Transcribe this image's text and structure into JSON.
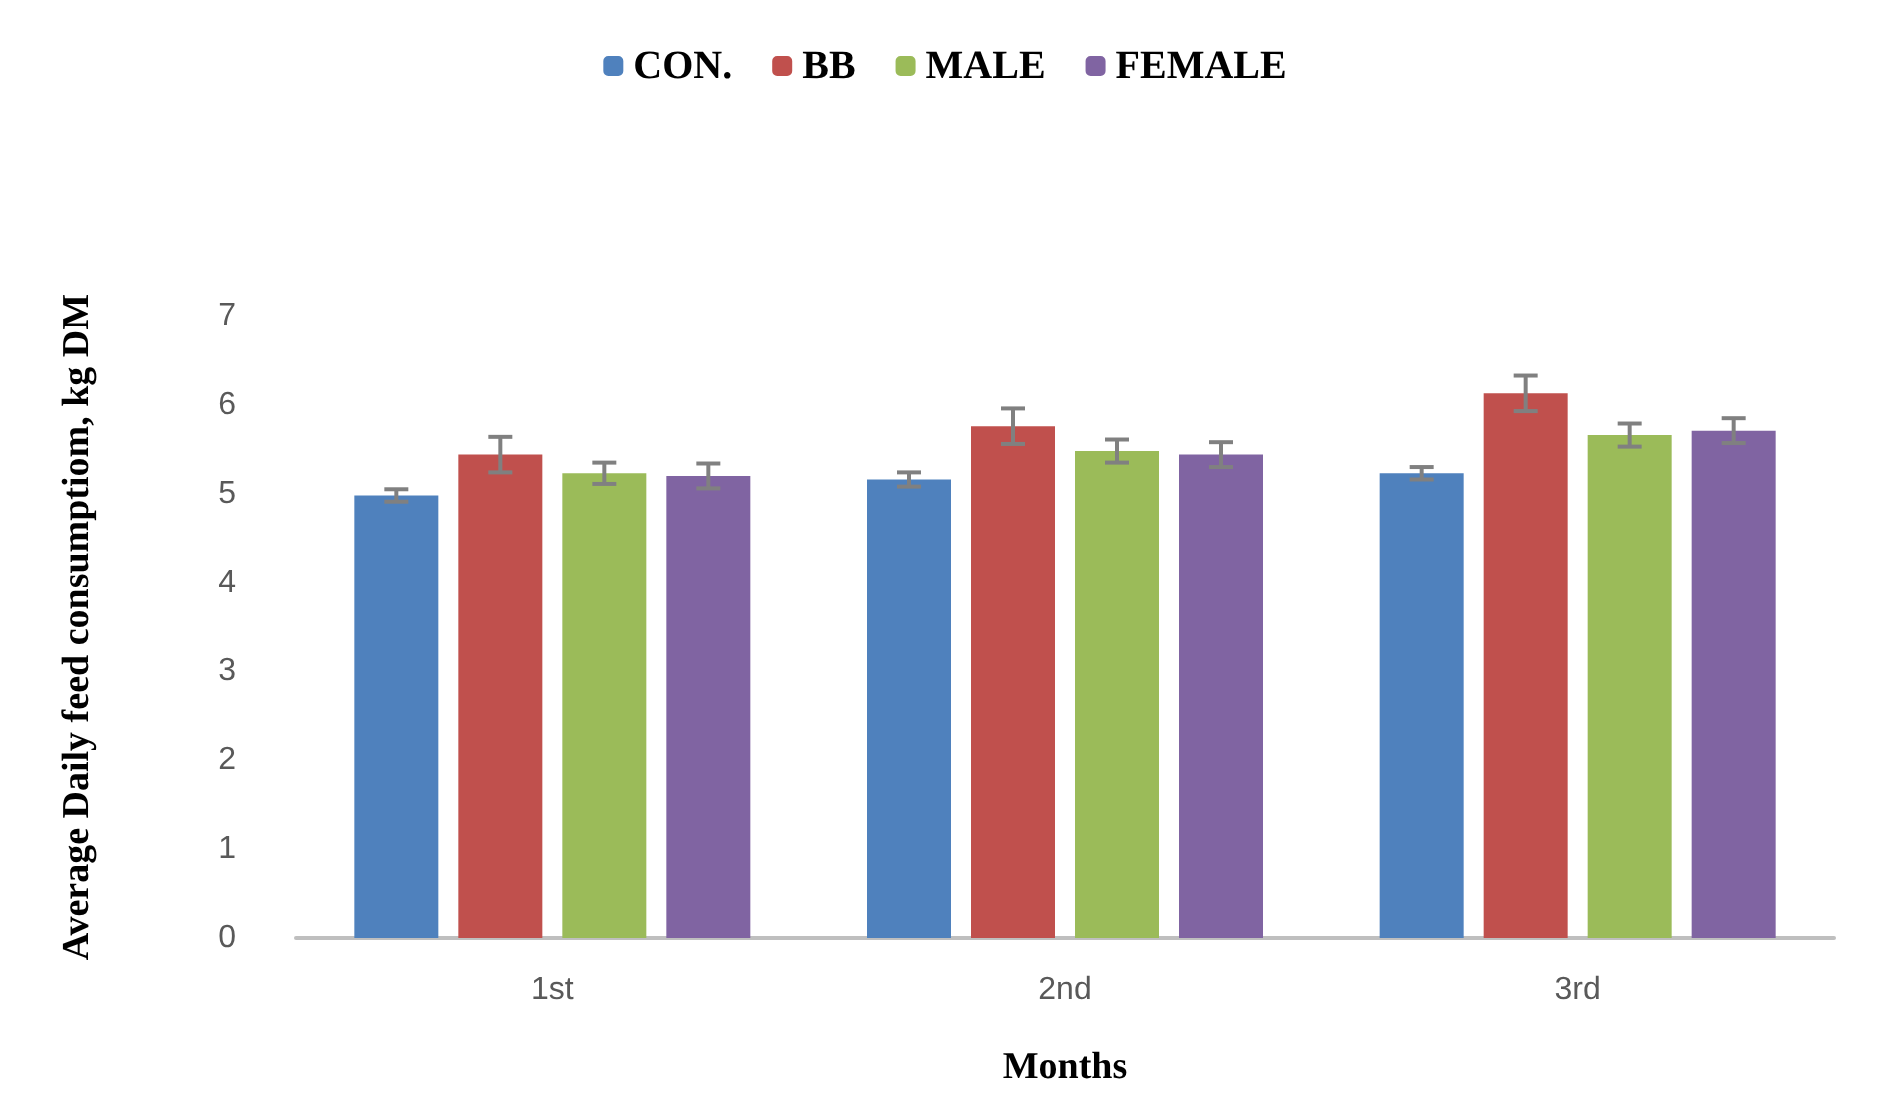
{
  "chart_data": {
    "type": "bar",
    "xlabel": "Months",
    "ylabel": "Average Daily feed consumptiom, kg DM",
    "categories": [
      "1st",
      "2nd",
      "3rd"
    ],
    "series": [
      {
        "name": "CON.",
        "color": "#4f81bd",
        "values": [
          4.98,
          5.16,
          5.23
        ],
        "errors": [
          0.07,
          0.08,
          0.07
        ]
      },
      {
        "name": "BB",
        "color": "#c0504d",
        "values": [
          5.44,
          5.76,
          6.13
        ],
        "errors": [
          0.2,
          0.2,
          0.2
        ]
      },
      {
        "name": "MALE",
        "color": "#9bbb59",
        "values": [
          5.23,
          5.48,
          5.66
        ],
        "errors": [
          0.12,
          0.13,
          0.13
        ]
      },
      {
        "name": "FEMALE",
        "color": "#8064a2",
        "values": [
          5.2,
          5.44,
          5.71
        ],
        "errors": [
          0.14,
          0.14,
          0.14
        ]
      }
    ],
    "ylim": [
      0,
      7
    ],
    "yticks": [
      0,
      1,
      2,
      3,
      4,
      5,
      6,
      7
    ],
    "grid": false,
    "legend": "top"
  }
}
